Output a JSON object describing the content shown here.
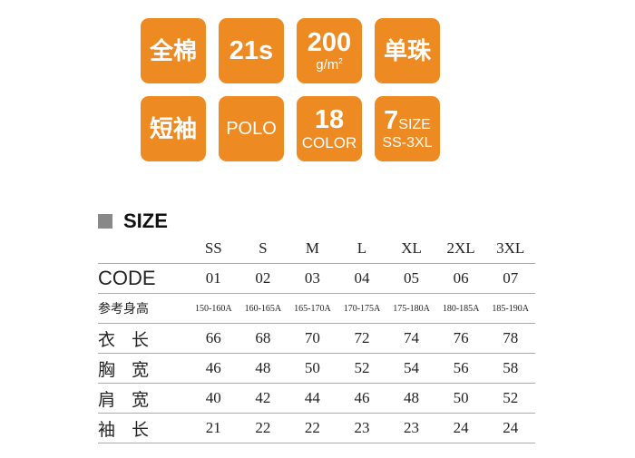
{
  "badges": [
    {
      "main": "全棉"
    },
    {
      "main": "21s"
    },
    {
      "main": "200",
      "sub": "g/m",
      "sup": "2"
    },
    {
      "main": "单珠"
    },
    {
      "main": "短袖"
    },
    {
      "main": "POLO"
    },
    {
      "main": "18",
      "sub": "COLOR"
    },
    {
      "main": "7",
      "main_suffix": "SIZE",
      "sub": "SS-3XL"
    }
  ],
  "accent_color": "#ee8a22",
  "size_title": "SIZE",
  "table": {
    "headers": [
      "SS",
      "S",
      "M",
      "L",
      "XL",
      "2XL",
      "3XL"
    ],
    "rows": [
      {
        "label": "CODE",
        "values": [
          "01",
          "02",
          "03",
          "04",
          "05",
          "06",
          "07"
        ]
      },
      {
        "label": "参考身高",
        "values": [
          "150-160A",
          "160-165A",
          "165-170A",
          "170-175A",
          "175-180A",
          "180-185A",
          "185-190A"
        ]
      },
      {
        "label": "衣长",
        "values": [
          "66",
          "68",
          "70",
          "72",
          "74",
          "76",
          "78"
        ]
      },
      {
        "label": "胸宽",
        "values": [
          "46",
          "48",
          "50",
          "52",
          "54",
          "56",
          "58"
        ]
      },
      {
        "label": "肩宽",
        "values": [
          "40",
          "42",
          "44",
          "46",
          "48",
          "50",
          "52"
        ]
      },
      {
        "label": "袖长",
        "values": [
          "21",
          "22",
          "22",
          "23",
          "23",
          "24",
          "24"
        ]
      }
    ]
  }
}
